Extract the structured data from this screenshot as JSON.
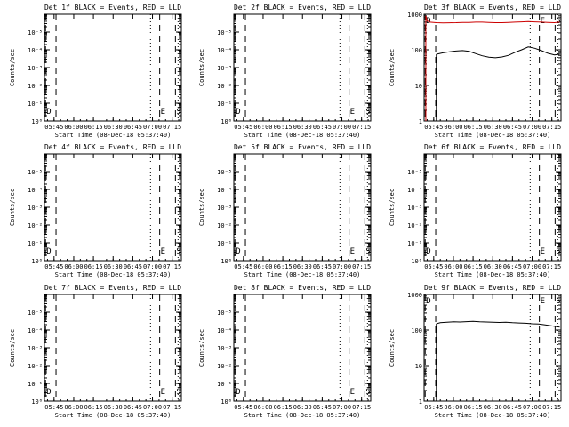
{
  "ylabel": "Counts/sec",
  "xlabel": "Start Time (08-Dec-18 05:37:40)",
  "x_ticks": [
    "05:45",
    "06:00",
    "06:15",
    "06:30",
    "06:45",
    "07:00",
    "07:15"
  ],
  "x_tick_minutes": [
    45,
    60,
    75,
    90,
    105,
    120,
    135
  ],
  "xlim_minutes": [
    37.67,
    142
  ],
  "markers": [
    {
      "label": "D",
      "minute": 38.5,
      "style": "long-dash"
    },
    {
      "label": "",
      "minute": 46.5,
      "style": "long-dash"
    },
    {
      "label": "",
      "minute": 118.5,
      "style": "dotted"
    },
    {
      "label": "E",
      "minute": 125.5,
      "style": "long-dash"
    },
    {
      "label": "S",
      "minute": 137.5,
      "style": "long-dash"
    },
    {
      "label": "",
      "minute": 139.5,
      "style": "dotted"
    }
  ],
  "log_ticks_empty": [
    "10⁰",
    "10⁻¹",
    "10⁻²",
    "10⁻³",
    "10⁻⁴",
    "10⁻⁵"
  ],
  "log_ticks_data": [
    "1",
    "10",
    "100",
    "1000"
  ],
  "series_names": {
    "events": "Events",
    "lld": "LLD"
  },
  "colors": {
    "events": "#000000",
    "lld": "#cc0000"
  },
  "chart_data": [
    {
      "type": "line",
      "title": "Det 1f BLACK = Events, RED = LLD",
      "scale": "log",
      "ylim": [
        1e-06,
        1
      ],
      "series": []
    },
    {
      "type": "line",
      "title": "Det 2f BLACK = Events, RED = LLD",
      "scale": "log",
      "ylim": [
        1e-06,
        1
      ],
      "series": []
    },
    {
      "type": "line",
      "title": "Det 3f BLACK = Events, RED = LLD",
      "scale": "log",
      "ylim": [
        1,
        1000
      ],
      "series": [
        {
          "name": "Events",
          "x": [
            47,
            52,
            57,
            62,
            67,
            72,
            77,
            82,
            87,
            92,
            97,
            102,
            107,
            112,
            117,
            122,
            127,
            132,
            137,
            141
          ],
          "y": [
            75,
            82,
            88,
            92,
            95,
            90,
            78,
            68,
            62,
            60,
            63,
            70,
            85,
            100,
            120,
            110,
            95,
            80,
            72,
            75
          ]
        },
        {
          "name": "LLD",
          "x": [
            39,
            40,
            42,
            45,
            47,
            52,
            57,
            62,
            67,
            72,
            77,
            82,
            87,
            92,
            97,
            102,
            107,
            112,
            117,
            122,
            127,
            132,
            137,
            141
          ],
          "y": [
            900,
            650,
            600,
            590,
            580,
            570,
            575,
            580,
            590,
            590,
            600,
            600,
            590,
            580,
            580,
            590,
            600,
            610,
            620,
            610,
            600,
            590,
            580,
            600
          ]
        }
      ]
    },
    {
      "type": "line",
      "title": "Det 4f BLACK = Events, RED = LLD",
      "scale": "log",
      "ylim": [
        1e-06,
        1
      ],
      "series": []
    },
    {
      "type": "line",
      "title": "Det 5f BLACK = Events, RED = LLD",
      "scale": "log",
      "ylim": [
        1e-06,
        1
      ],
      "series": []
    },
    {
      "type": "line",
      "title": "Det 6f BLACK = Events, RED = LLD",
      "scale": "log",
      "ylim": [
        1e-06,
        1
      ],
      "series": []
    },
    {
      "type": "line",
      "title": "Det 7f BLACK = Events, RED = LLD",
      "scale": "log",
      "ylim": [
        1e-06,
        1
      ],
      "series": []
    },
    {
      "type": "line",
      "title": "Det 8f BLACK = Events, RED = LLD",
      "scale": "log",
      "ylim": [
        1e-06,
        1
      ],
      "series": []
    },
    {
      "type": "line",
      "title": "Det 9f BLACK = Events, RED = LLD",
      "scale": "log",
      "ylim": [
        1,
        1000
      ],
      "series": [
        {
          "name": "Events",
          "x": [
            47,
            50,
            55,
            60,
            65,
            70,
            75,
            80,
            85,
            90,
            95,
            100,
            105,
            110,
            115,
            120,
            125,
            130,
            135,
            141
          ],
          "y": [
            150,
            160,
            165,
            170,
            168,
            172,
            175,
            170,
            168,
            165,
            163,
            165,
            160,
            158,
            155,
            150,
            148,
            140,
            130,
            120
          ]
        }
      ]
    }
  ]
}
